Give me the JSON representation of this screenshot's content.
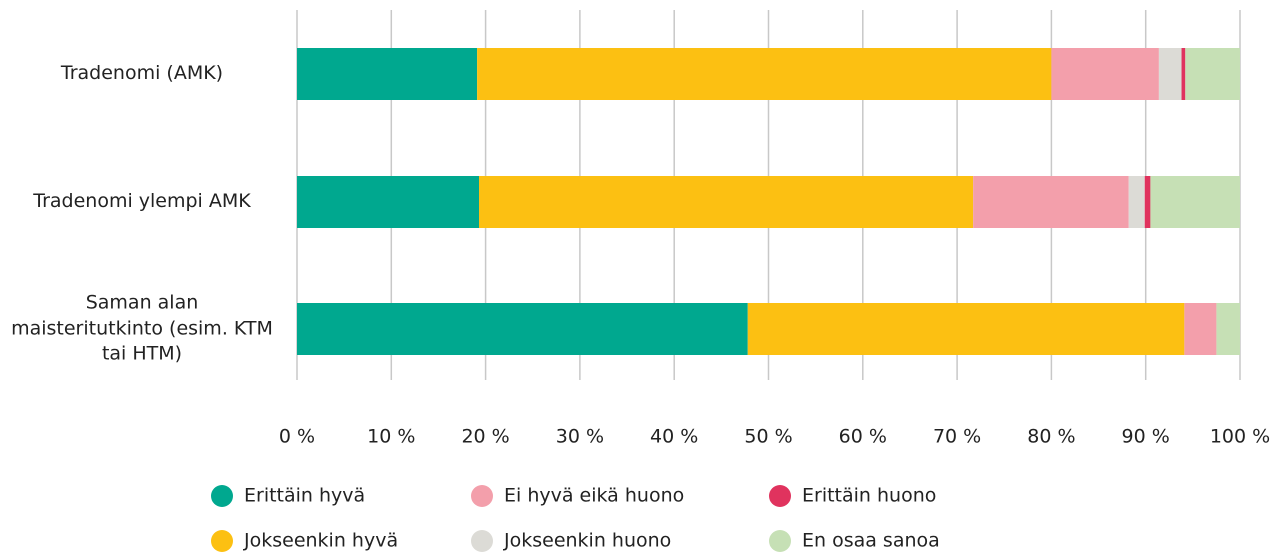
{
  "chart_data": {
    "type": "stacked_barh",
    "categories": [
      "Tradenomi (AMK)",
      "Tradenomi ylempi AMK",
      "Saman alan maisteritutkinto (esim. KTM tai HTM)"
    ],
    "series": [
      {
        "name": "Erittäin hyvä",
        "color": "#00a88f",
        "values": [
          19.1,
          19.3,
          47.8
        ]
      },
      {
        "name": "Jokseenkin hyvä",
        "color": "#fcc012",
        "values": [
          60.9,
          52.4,
          46.3
        ]
      },
      {
        "name": "Ei hyvä eikä huono",
        "color": "#f39fab",
        "values": [
          11.4,
          16.5,
          3.4
        ]
      },
      {
        "name": "Jokseenkin huono",
        "color": "#dcdbd6",
        "values": [
          2.4,
          1.7,
          0
        ]
      },
      {
        "name": "Erittäin huono",
        "color": "#e0335e",
        "values": [
          0.4,
          0.6,
          0
        ]
      },
      {
        "name": "En osaa sanoa",
        "color": "#c6e0b5",
        "values": [
          5.8,
          9.5,
          2.5
        ]
      }
    ],
    "xlim": [
      0,
      100
    ],
    "xticks": [
      {
        "value": 0,
        "label": "0 %"
      },
      {
        "value": 10,
        "label": "10 %"
      },
      {
        "value": 20,
        "label": "20 %"
      },
      {
        "value": 30,
        "label": "30 %"
      },
      {
        "value": 40,
        "label": "40 %"
      },
      {
        "value": 50,
        "label": "50 %"
      },
      {
        "value": 60,
        "label": "60 %"
      },
      {
        "value": 70,
        "label": "70 %"
      },
      {
        "value": 80,
        "label": "80 %"
      },
      {
        "value": 90,
        "label": "90 %"
      },
      {
        "value": 100,
        "label": "100 %"
      }
    ],
    "grid": true
  }
}
